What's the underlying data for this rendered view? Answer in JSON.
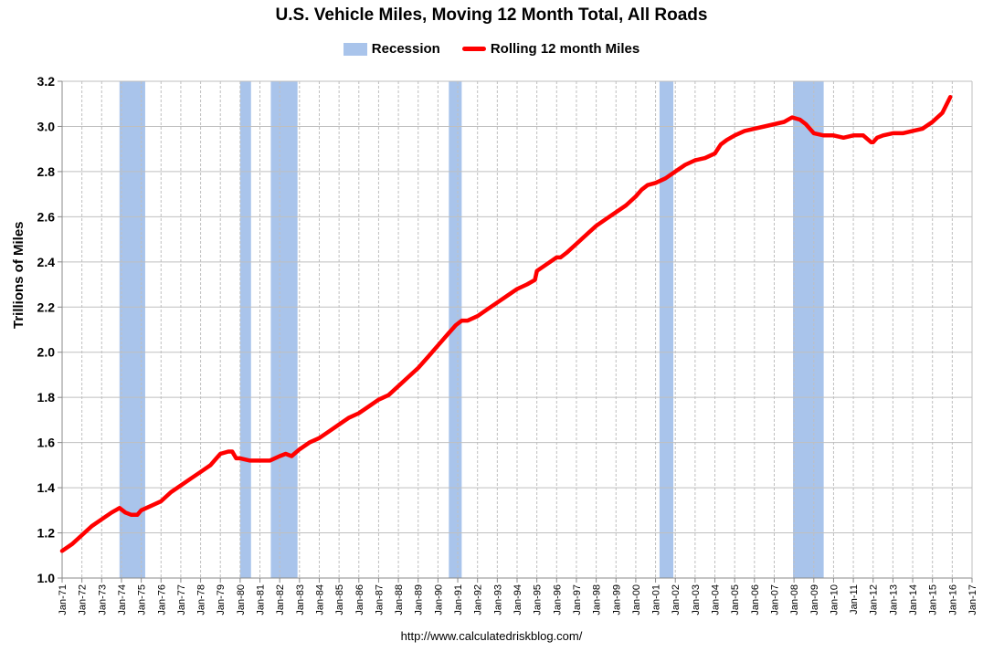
{
  "chart_data": {
    "type": "line",
    "title": "U.S. Vehicle Miles, Moving 12 Month Total, All Roads",
    "ylabel": "Trillions of Miles",
    "xlabel": "",
    "ylim": [
      1.0,
      3.2
    ],
    "yticks": [
      "1.0",
      "1.2",
      "1.4",
      "1.6",
      "1.8",
      "2.0",
      "2.2",
      "2.4",
      "2.6",
      "2.8",
      "3.0",
      "3.2"
    ],
    "xlim": [
      1971,
      2017
    ],
    "xtick_labels": [
      "Jan-71",
      "Jan-72",
      "Jan-73",
      "Jan-74",
      "Jan-75",
      "Jan-76",
      "Jan-77",
      "Jan-78",
      "Jan-79",
      "Jan-80",
      "Jan-81",
      "Jan-82",
      "Jan-83",
      "Jan-84",
      "Jan-85",
      "Jan-86",
      "Jan-87",
      "Jan-88",
      "Jan-89",
      "Jan-90",
      "Jan-91",
      "Jan-92",
      "Jan-93",
      "Jan-94",
      "Jan-95",
      "Jan-96",
      "Jan-97",
      "Jan-98",
      "Jan-99",
      "Jan-00",
      "Jan-01",
      "Jan-02",
      "Jan-03",
      "Jan-04",
      "Jan-05",
      "Jan-06",
      "Jan-07",
      "Jan-08",
      "Jan-09",
      "Jan-10",
      "Jan-11",
      "Jan-12",
      "Jan-13",
      "Jan-14",
      "Jan-15",
      "Jan-16",
      "Jan-17"
    ],
    "grid": true,
    "legend": {
      "position": "top-center",
      "recession_label": "Recession",
      "series_label": "Rolling 12 month Miles"
    },
    "colors": {
      "recession": "#a9c4eb",
      "line": "#ff0000",
      "grid": "#bfbfbf"
    },
    "recessions": [
      {
        "start": 1973.9,
        "end": 1975.2
      },
      {
        "start": 1980.0,
        "end": 1980.55
      },
      {
        "start": 1981.55,
        "end": 1982.9
      },
      {
        "start": 1990.55,
        "end": 1991.2
      },
      {
        "start": 2001.2,
        "end": 2001.9
      },
      {
        "start": 2007.95,
        "end": 2009.5
      }
    ],
    "series": [
      {
        "name": "Rolling 12 month Miles",
        "x": [
          1971.0,
          1971.5,
          1972.0,
          1972.5,
          1973.0,
          1973.5,
          1973.9,
          1974.2,
          1974.5,
          1974.8,
          1975.0,
          1975.5,
          1976.0,
          1976.5,
          1977.0,
          1977.5,
          1978.0,
          1978.5,
          1978.8,
          1979.0,
          1979.4,
          1979.6,
          1979.8,
          1980.0,
          1980.5,
          1981.0,
          1981.5,
          1982.0,
          1982.3,
          1982.6,
          1983.0,
          1983.5,
          1984.0,
          1984.5,
          1985.0,
          1985.5,
          1986.0,
          1986.5,
          1987.0,
          1987.5,
          1988.0,
          1988.5,
          1989.0,
          1989.5,
          1990.0,
          1990.5,
          1990.9,
          1991.2,
          1991.5,
          1992.0,
          1992.5,
          1993.0,
          1993.5,
          1994.0,
          1994.5,
          1994.9,
          1995.0,
          1995.5,
          1996.0,
          1996.2,
          1996.5,
          1997.0,
          1997.5,
          1998.0,
          1998.5,
          1999.0,
          1999.5,
          2000.0,
          2000.3,
          2000.6,
          2001.0,
          2001.5,
          2002.0,
          2002.5,
          2003.0,
          2003.5,
          2004.0,
          2004.3,
          2004.6,
          2005.0,
          2005.5,
          2006.0,
          2006.5,
          2007.0,
          2007.5,
          2007.9,
          2008.3,
          2008.6,
          2009.0,
          2009.5,
          2010.0,
          2010.5,
          2011.0,
          2011.5,
          2011.9,
          2012.0,
          2012.2,
          2012.5,
          2013.0,
          2013.5,
          2014.0,
          2014.5,
          2015.0,
          2015.5,
          2015.9
        ],
        "values": [
          1.12,
          1.15,
          1.19,
          1.23,
          1.26,
          1.29,
          1.31,
          1.29,
          1.28,
          1.28,
          1.3,
          1.32,
          1.34,
          1.38,
          1.41,
          1.44,
          1.47,
          1.5,
          1.53,
          1.55,
          1.56,
          1.56,
          1.53,
          1.53,
          1.52,
          1.52,
          1.52,
          1.54,
          1.55,
          1.54,
          1.57,
          1.6,
          1.62,
          1.65,
          1.68,
          1.71,
          1.73,
          1.76,
          1.79,
          1.81,
          1.85,
          1.89,
          1.93,
          1.98,
          2.03,
          2.08,
          2.12,
          2.14,
          2.14,
          2.16,
          2.19,
          2.22,
          2.25,
          2.28,
          2.3,
          2.32,
          2.36,
          2.39,
          2.42,
          2.42,
          2.44,
          2.48,
          2.52,
          2.56,
          2.59,
          2.62,
          2.65,
          2.69,
          2.72,
          2.74,
          2.75,
          2.77,
          2.8,
          2.83,
          2.85,
          2.86,
          2.88,
          2.92,
          2.94,
          2.96,
          2.98,
          2.99,
          3.0,
          3.01,
          3.02,
          3.04,
          3.03,
          3.01,
          2.97,
          2.96,
          2.96,
          2.95,
          2.96,
          2.96,
          2.93,
          2.93,
          2.95,
          2.96,
          2.97,
          2.97,
          2.98,
          2.99,
          3.02,
          3.06,
          3.13
        ]
      }
    ]
  },
  "source": "http://www.calculatedriskblog.com/"
}
